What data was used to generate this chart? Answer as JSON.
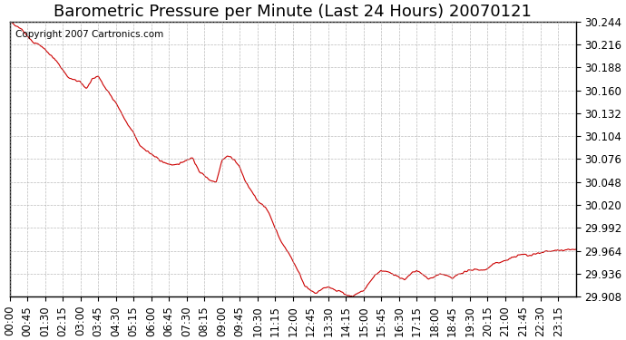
{
  "title": "Barometric Pressure per Minute (Last 24 Hours) 20070121",
  "copyright": "Copyright 2007 Cartronics.com",
  "line_color": "#cc0000",
  "bg_color": "#ffffff",
  "plot_bg_color": "#ffffff",
  "grid_color": "#aaaaaa",
  "ylim": [
    29.908,
    30.244
  ],
  "yticks": [
    29.908,
    29.936,
    29.964,
    29.992,
    30.02,
    30.048,
    30.076,
    30.104,
    30.132,
    30.16,
    30.188,
    30.216,
    30.244
  ],
  "xtick_labels": [
    "00:00",
    "00:45",
    "01:30",
    "02:15",
    "03:00",
    "03:45",
    "04:30",
    "05:15",
    "06:00",
    "06:45",
    "07:30",
    "08:15",
    "09:00",
    "09:45",
    "10:30",
    "11:15",
    "12:00",
    "12:45",
    "13:30",
    "14:15",
    "15:00",
    "15:45",
    "16:30",
    "17:15",
    "18:00",
    "18:45",
    "19:30",
    "20:15",
    "21:00",
    "21:45",
    "22:30",
    "23:15"
  ],
  "title_fontsize": 13,
  "tick_fontsize": 8.5,
  "copyright_fontsize": 7.5
}
